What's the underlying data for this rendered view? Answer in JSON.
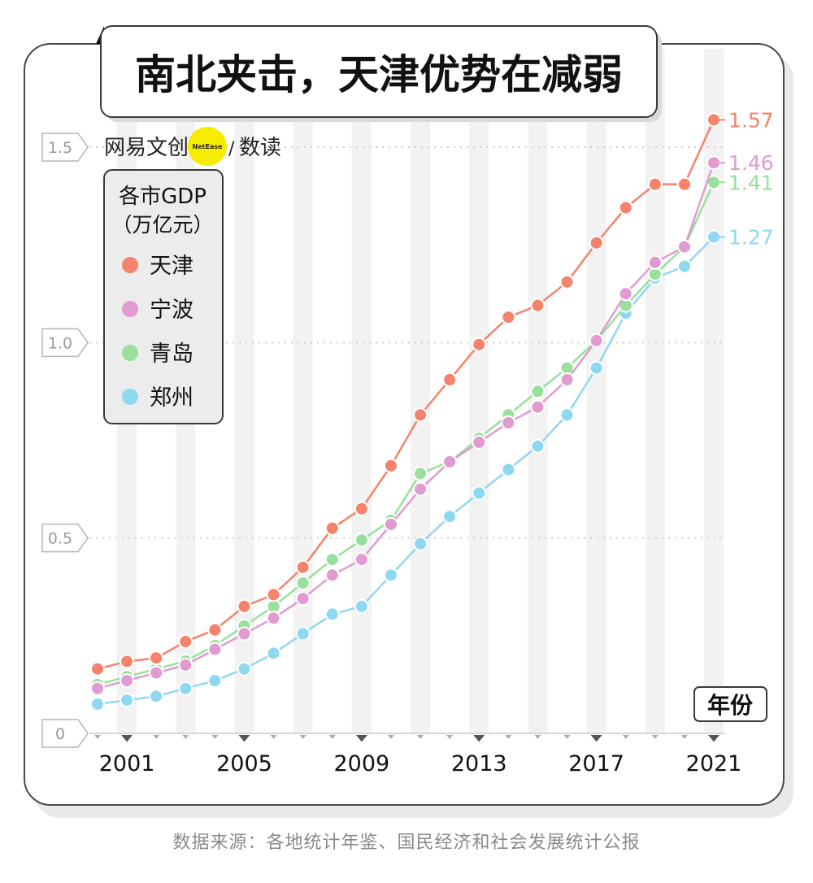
{
  "title": "南北夹击，天津优势在减弱",
  "brand": {
    "cn": "网易文创",
    "badge": "NetEase",
    "sep": "/",
    "sub": "数读"
  },
  "legend": {
    "title_line1": "各市GDP",
    "title_line2": "（万亿元）"
  },
  "axis_unit_label": "年份",
  "source": "数据来源：各地统计年鉴、国民经济和社会发展统计公报",
  "colors": {
    "tianjin": "#f5836b",
    "ningbo": "#e19bd0",
    "qingdao": "#98e09b",
    "zhengzhou": "#8fd8f2",
    "panel_border": "#4a4a4a",
    "stripe": "#f2f2f2",
    "shadow": "#e9e9e9"
  },
  "chart_data": {
    "type": "line",
    "title": "南北夹击，天津优势在减弱",
    "xlabel": "年份",
    "ylabel": "各市GDP（万亿元）",
    "x": [
      2000,
      2001,
      2002,
      2003,
      2004,
      2005,
      2006,
      2007,
      2008,
      2009,
      2010,
      2011,
      2012,
      2013,
      2014,
      2015,
      2016,
      2017,
      2018,
      2019,
      2020,
      2021
    ],
    "ylim": [
      0,
      1.6
    ],
    "yticks": [
      {
        "value": 0,
        "label": "0"
      },
      {
        "value": 0.5,
        "label": "0.5"
      },
      {
        "value": 1.0,
        "label": "1.0"
      },
      {
        "value": 1.5,
        "label": "1.5"
      }
    ],
    "xticks": [
      {
        "value": 2001,
        "label": "2001"
      },
      {
        "value": 2005,
        "label": "2005"
      },
      {
        "value": 2009,
        "label": "2009"
      },
      {
        "value": 2013,
        "label": "2013"
      },
      {
        "value": 2017,
        "label": "2017"
      },
      {
        "value": 2021,
        "label": "2021"
      }
    ],
    "series": [
      {
        "name": "天津",
        "key": "tianjin",
        "end_label": "1.57",
        "values": [
          0.165,
          0.184,
          0.193,
          0.235,
          0.265,
          0.325,
          0.355,
          0.425,
          0.525,
          0.575,
          0.685,
          0.815,
          0.905,
          0.995,
          1.065,
          1.095,
          1.155,
          1.255,
          1.345,
          1.405,
          1.405,
          1.57
        ]
      },
      {
        "name": "宁波",
        "key": "ningbo",
        "end_label": "1.46",
        "values": [
          0.115,
          0.135,
          0.155,
          0.175,
          0.215,
          0.255,
          0.295,
          0.345,
          0.405,
          0.445,
          0.535,
          0.625,
          0.695,
          0.745,
          0.795,
          0.835,
          0.905,
          1.005,
          1.125,
          1.205,
          1.245,
          1.46
        ]
      },
      {
        "name": "青岛",
        "key": "qingdao",
        "end_label": "1.41",
        "values": [
          0.125,
          0.145,
          0.165,
          0.185,
          0.225,
          0.275,
          0.325,
          0.385,
          0.445,
          0.495,
          0.545,
          0.665,
          0.695,
          0.755,
          0.815,
          0.875,
          0.935,
          1.005,
          1.095,
          1.175,
          1.245,
          1.41
        ]
      },
      {
        "name": "郑州",
        "key": "zhengzhou",
        "end_label": "1.27",
        "values": [
          0.075,
          0.085,
          0.095,
          0.115,
          0.135,
          0.165,
          0.205,
          0.255,
          0.305,
          0.325,
          0.405,
          0.485,
          0.555,
          0.615,
          0.675,
          0.735,
          0.815,
          0.935,
          1.075,
          1.165,
          1.195,
          1.27
        ]
      }
    ]
  }
}
